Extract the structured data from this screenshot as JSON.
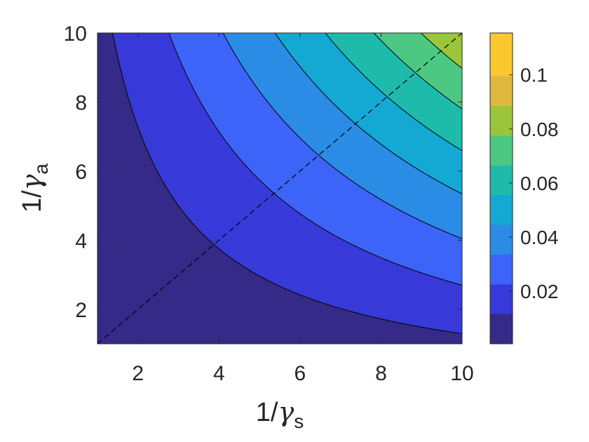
{
  "chart_data": {
    "type": "contour",
    "title": "",
    "xlabel": {
      "prefix": "1/",
      "symbol": "γ",
      "subscript": "s"
    },
    "ylabel": {
      "prefix": "1/",
      "symbol": "γ",
      "subscript": "a"
    },
    "xlim": [
      1,
      10
    ],
    "ylim": [
      1,
      10
    ],
    "x_ticks": [
      "2",
      "4",
      "6",
      "8",
      "10"
    ],
    "y_ticks": [
      "2",
      "4",
      "6",
      "8",
      "10"
    ],
    "x_tick_values": [
      2,
      4,
      6,
      8,
      10
    ],
    "y_tick_values": [
      2,
      4,
      6,
      8,
      10
    ],
    "colorbar": {
      "range": [
        0.0005,
        0.1155
      ],
      "ticks": [
        "0.02",
        "0.04",
        "0.06",
        "0.08",
        "0.1"
      ],
      "tick_values": [
        0.02,
        0.04,
        0.06,
        0.08,
        0.1
      ],
      "colormap": "parula"
    },
    "contour_levels": [
      0.0115,
      0.0225,
      0.0335,
      0.0445,
      0.0555,
      0.0665,
      0.0775,
      0.0885,
      0.0995
    ],
    "band_colors": [
      "#352a87",
      "#373ad8",
      "#3c64f8",
      "#2b8ce6",
      "#14a9d3",
      "#1ebbab",
      "#4dc883",
      "#9bc53a",
      "#e1b83f",
      "#fbc830",
      "#f9fb0e"
    ],
    "reference_line": {
      "style": "dashed",
      "from": [
        1,
        1
      ],
      "to": [
        10,
        10
      ]
    },
    "grid": false
  }
}
